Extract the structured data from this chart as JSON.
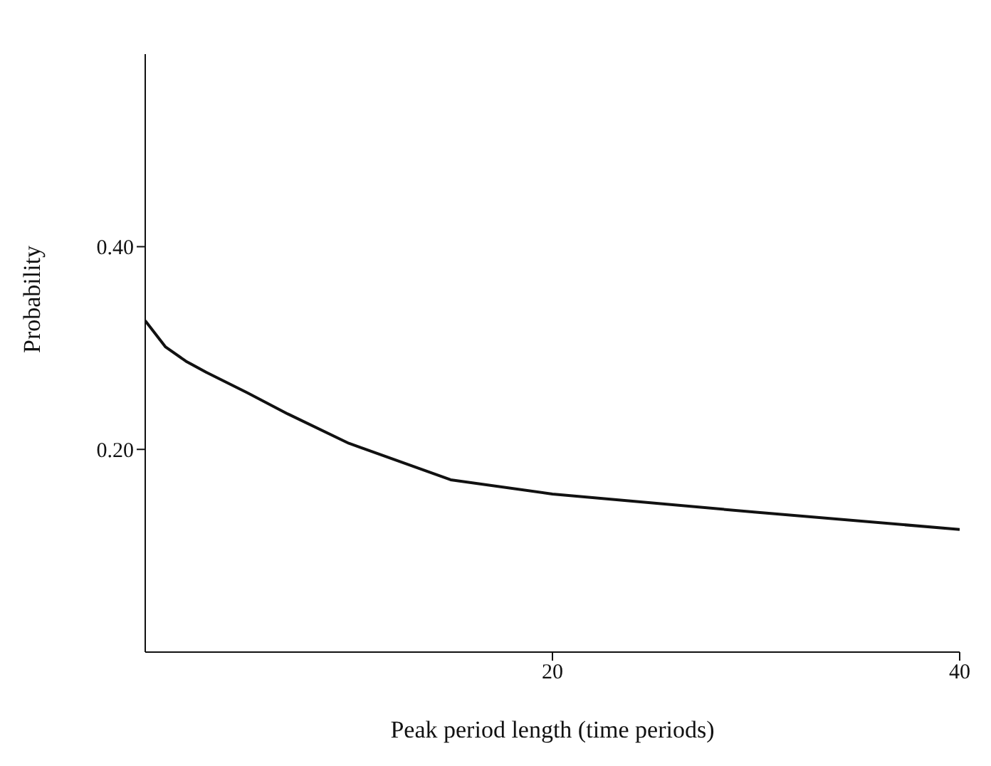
{
  "chart_data": {
    "type": "line",
    "xlabel": "Peak period length (time periods)",
    "ylabel": "Probability",
    "x": [
      0,
      1,
      2,
      3,
      5,
      7,
      10,
      15,
      20,
      30,
      40
    ],
    "series": [
      {
        "color": "#111111",
        "values": [
          0.327,
          0.301,
          0.287,
          0.276,
          0.256,
          0.235,
          0.206,
          0.17,
          0.156,
          0.138,
          0.121
        ]
      }
    ],
    "xlim": [
      0,
      40
    ],
    "xticks": [
      20,
      40
    ],
    "ylim": [
      0,
      0.59
    ],
    "yticks": [
      {
        "value": 0.2,
        "label": "0.20"
      },
      {
        "value": 0.4,
        "label": "0.40"
      }
    ],
    "grid": false,
    "legend": false,
    "marker": "none",
    "line_style": "solid"
  }
}
